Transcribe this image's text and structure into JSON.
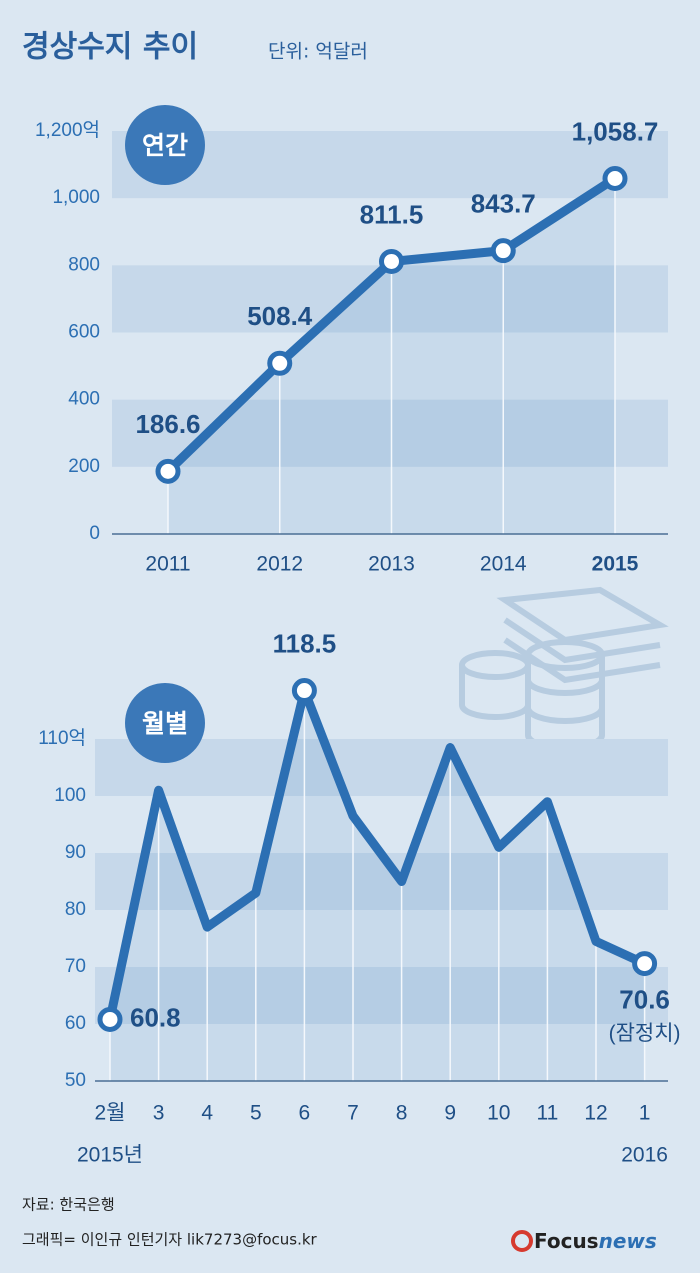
{
  "header": {
    "title": "경상수지 추이",
    "unit": "단위: 억달러"
  },
  "chart_data": [
    {
      "type": "line",
      "badge": "연간",
      "color": "#2c6fb3",
      "categories": [
        "2011",
        "2012",
        "2013",
        "2014",
        "2015"
      ],
      "values": [
        186.6,
        508.4,
        811.5,
        843.7,
        1058.7
      ],
      "value_labels": [
        "186.6",
        "508.4",
        "811.5",
        "843.7",
        "1,058.7"
      ],
      "ylim": [
        0,
        1200
      ],
      "yticks": [
        0,
        200,
        400,
        600,
        800,
        {
          "value": 1000,
          "label": "1,000"
        },
        {
          "value": 1200,
          "label": "1,200억"
        }
      ],
      "grid": true
    },
    {
      "type": "line",
      "badge": "월별",
      "color": "#2c6fb3",
      "categories": [
        "2월",
        "3",
        "4",
        "5",
        "6",
        "7",
        "8",
        "9",
        "10",
        "11",
        "12",
        "1"
      ],
      "period_start": "2015년",
      "period_end": "2016",
      "values": [
        60.8,
        101,
        77,
        83,
        118.5,
        96.5,
        85,
        108.5,
        91,
        99,
        74.5,
        70.6
      ],
      "value_labels": [
        "60.8",
        null,
        null,
        null,
        "118.5",
        null,
        null,
        null,
        null,
        null,
        null,
        "70.6"
      ],
      "annotation": "(잠정치)",
      "ylim": [
        50,
        110
      ],
      "yticks": [
        50,
        60,
        70,
        80,
        90,
        100,
        {
          "value": 110,
          "label": "110억"
        }
      ],
      "grid": true
    }
  ],
  "footer": {
    "source": "자료: 한국은행",
    "credit": "그래픽= 이인규 인턴기자 lik7273@focus.kr",
    "logo_focus": "Focus",
    "logo_news": "news"
  }
}
